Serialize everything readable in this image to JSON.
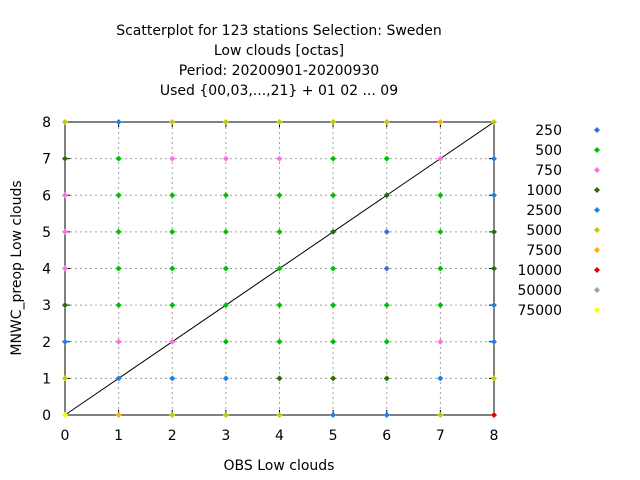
{
  "chart_data": {
    "type": "scatter",
    "title_lines": [
      "Scatterplot for  123 stations Selection: Sweden",
      "Low clouds [octas]",
      "Period: 20200901-20200930",
      "Used {00,03,...,21} + 01 02 ... 09"
    ],
    "xlabel": "OBS Low clouds",
    "ylabel": "MNWC_preop Low clouds",
    "xlim": [
      0,
      8
    ],
    "ylim": [
      0,
      8
    ],
    "xticks": [
      0,
      1,
      2,
      3,
      4,
      5,
      6,
      7,
      8
    ],
    "yticks": [
      0,
      1,
      2,
      3,
      4,
      5,
      6,
      7,
      8
    ],
    "grid": true,
    "diagonal_line": true,
    "legend_position": "right",
    "legend": [
      {
        "label": "250",
        "color": "#3b6fd6"
      },
      {
        "label": "500",
        "color": "#00c000"
      },
      {
        "label": "750",
        "color": "#ff6ef0"
      },
      {
        "label": "1000",
        "color": "#2e6b00"
      },
      {
        "label": "2500",
        "color": "#1f7fe6"
      },
      {
        "label": "5000",
        "color": "#c8c800"
      },
      {
        "label": "7500",
        "color": "#ffb000"
      },
      {
        "label": "10000",
        "color": "#e00000"
      },
      {
        "label": "50000",
        "color": "#a0a0a0"
      },
      {
        "label": "75000",
        "color": "#ffff00"
      }
    ],
    "points": [
      {
        "x": 0,
        "y": 8,
        "color": "#c8c800"
      },
      {
        "x": 1,
        "y": 8,
        "color": "#1f7fe6"
      },
      {
        "x": 2,
        "y": 8,
        "color": "#c8c800"
      },
      {
        "x": 3,
        "y": 8,
        "color": "#c8c800"
      },
      {
        "x": 4,
        "y": 8,
        "color": "#c8c800"
      },
      {
        "x": 5,
        "y": 8,
        "color": "#c8c800"
      },
      {
        "x": 6,
        "y": 8,
        "color": "#c8c800"
      },
      {
        "x": 7,
        "y": 8,
        "color": "#ffb000"
      },
      {
        "x": 8,
        "y": 8,
        "color": "#c8c800"
      },
      {
        "x": 0,
        "y": 7,
        "color": "#2e6b00"
      },
      {
        "x": 1,
        "y": 7,
        "color": "#00c000"
      },
      {
        "x": 2,
        "y": 7,
        "color": "#ff6ef0"
      },
      {
        "x": 3,
        "y": 7,
        "color": "#ff6ef0"
      },
      {
        "x": 4,
        "y": 7,
        "color": "#ff6ef0"
      },
      {
        "x": 5,
        "y": 7,
        "color": "#00c000"
      },
      {
        "x": 6,
        "y": 7,
        "color": "#00c000"
      },
      {
        "x": 7,
        "y": 7,
        "color": "#ff6ef0"
      },
      {
        "x": 8,
        "y": 7,
        "color": "#1f7fe6"
      },
      {
        "x": 0,
        "y": 6,
        "color": "#ff6ef0"
      },
      {
        "x": 1,
        "y": 6,
        "color": "#00c000"
      },
      {
        "x": 2,
        "y": 6,
        "color": "#00c000"
      },
      {
        "x": 3,
        "y": 6,
        "color": "#00c000"
      },
      {
        "x": 4,
        "y": 6,
        "color": "#00c000"
      },
      {
        "x": 5,
        "y": 6,
        "color": "#00c000"
      },
      {
        "x": 6,
        "y": 6,
        "color": "#2e6b00"
      },
      {
        "x": 7,
        "y": 6,
        "color": "#00c000"
      },
      {
        "x": 8,
        "y": 6,
        "color": "#1f7fe6"
      },
      {
        "x": 0,
        "y": 5,
        "color": "#ff6ef0"
      },
      {
        "x": 1,
        "y": 5,
        "color": "#00c000"
      },
      {
        "x": 2,
        "y": 5,
        "color": "#00c000"
      },
      {
        "x": 3,
        "y": 5,
        "color": "#00c000"
      },
      {
        "x": 4,
        "y": 5,
        "color": "#00c000"
      },
      {
        "x": 5,
        "y": 5,
        "color": "#2e6b00"
      },
      {
        "x": 6,
        "y": 5,
        "color": "#3b6fd6"
      },
      {
        "x": 7,
        "y": 5,
        "color": "#00c000"
      },
      {
        "x": 8,
        "y": 5,
        "color": "#2e6b00"
      },
      {
        "x": 0,
        "y": 4,
        "color": "#ff6ef0"
      },
      {
        "x": 1,
        "y": 4,
        "color": "#00c000"
      },
      {
        "x": 2,
        "y": 4,
        "color": "#00c000"
      },
      {
        "x": 3,
        "y": 4,
        "color": "#00c000"
      },
      {
        "x": 4,
        "y": 4,
        "color": "#00c000"
      },
      {
        "x": 5,
        "y": 4,
        "color": "#00c000"
      },
      {
        "x": 6,
        "y": 4,
        "color": "#3b6fd6"
      },
      {
        "x": 7,
        "y": 4,
        "color": "#00c000"
      },
      {
        "x": 8,
        "y": 4,
        "color": "#2e6b00"
      },
      {
        "x": 0,
        "y": 3,
        "color": "#2e6b00"
      },
      {
        "x": 1,
        "y": 3,
        "color": "#00c000"
      },
      {
        "x": 2,
        "y": 3,
        "color": "#00c000"
      },
      {
        "x": 3,
        "y": 3,
        "color": "#00c000"
      },
      {
        "x": 4,
        "y": 3,
        "color": "#00c000"
      },
      {
        "x": 5,
        "y": 3,
        "color": "#00c000"
      },
      {
        "x": 6,
        "y": 3,
        "color": "#00c000"
      },
      {
        "x": 7,
        "y": 3,
        "color": "#00c000"
      },
      {
        "x": 8,
        "y": 3,
        "color": "#1f7fe6"
      },
      {
        "x": 0,
        "y": 2,
        "color": "#1f7fe6"
      },
      {
        "x": 1,
        "y": 2,
        "color": "#ff6ef0"
      },
      {
        "x": 2,
        "y": 2,
        "color": "#ff6ef0"
      },
      {
        "x": 3,
        "y": 2,
        "color": "#00c000"
      },
      {
        "x": 4,
        "y": 2,
        "color": "#00c000"
      },
      {
        "x": 5,
        "y": 2,
        "color": "#00c000"
      },
      {
        "x": 6,
        "y": 2,
        "color": "#00c000"
      },
      {
        "x": 7,
        "y": 2,
        "color": "#ff6ef0"
      },
      {
        "x": 8,
        "y": 2,
        "color": "#1f7fe6"
      },
      {
        "x": 0,
        "y": 1,
        "color": "#c8c800"
      },
      {
        "x": 1,
        "y": 1,
        "color": "#1f7fe6"
      },
      {
        "x": 2,
        "y": 1,
        "color": "#1f7fe6"
      },
      {
        "x": 3,
        "y": 1,
        "color": "#1f7fe6"
      },
      {
        "x": 4,
        "y": 1,
        "color": "#2e6b00"
      },
      {
        "x": 5,
        "y": 1,
        "color": "#2e6b00"
      },
      {
        "x": 6,
        "y": 1,
        "color": "#2e6b00"
      },
      {
        "x": 7,
        "y": 1,
        "color": "#1f7fe6"
      },
      {
        "x": 8,
        "y": 1,
        "color": "#c8c800"
      },
      {
        "x": 0,
        "y": 0,
        "color": "#ffff00"
      },
      {
        "x": 1,
        "y": 0,
        "color": "#ffb000"
      },
      {
        "x": 2,
        "y": 0,
        "color": "#c8c800"
      },
      {
        "x": 3,
        "y": 0,
        "color": "#c8c800"
      },
      {
        "x": 4,
        "y": 0,
        "color": "#c8c800"
      },
      {
        "x": 5,
        "y": 0,
        "color": "#1f7fe6"
      },
      {
        "x": 6,
        "y": 0,
        "color": "#1f7fe6"
      },
      {
        "x": 7,
        "y": 0,
        "color": "#c8c800"
      },
      {
        "x": 8,
        "y": 0,
        "color": "#e00000"
      }
    ]
  }
}
